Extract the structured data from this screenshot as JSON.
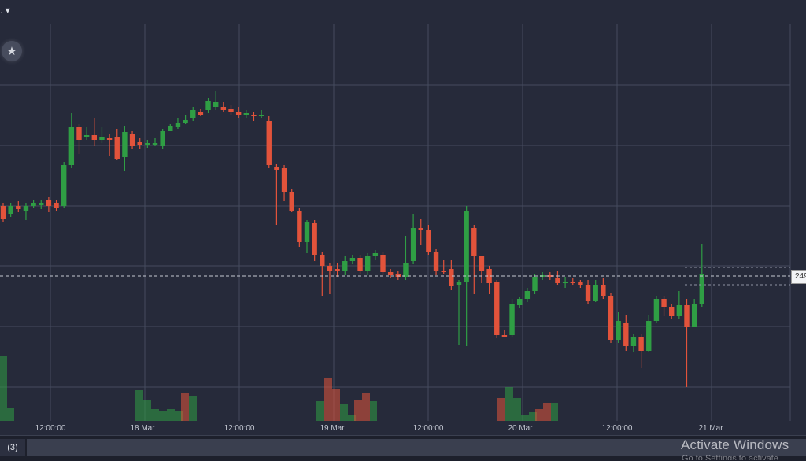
{
  "toolbar": {
    "asset_menu_label": "."
  },
  "price_axis": {
    "current_price_label": "249"
  },
  "bottom_panel": {
    "tab_count_label": "(3)"
  },
  "watermark": {
    "title": "Activate Windows",
    "subtitle": "Go to Settings to activate Windows."
  },
  "colors": {
    "background": "#262a3a",
    "grid": "#454b5e",
    "up": "#2f9e44",
    "down": "#e2533b"
  },
  "chart_data": {
    "type": "candlestick",
    "x_tick_labels": [
      "12:00:00",
      "18 Mar",
      "12:00:00",
      "19 Mar",
      "12:00:00",
      "20 Mar",
      "12:00:00",
      "21 Mar"
    ],
    "grid": true,
    "current_price_line": true,
    "candles_relative": [
      [
        262,
        278,
        258,
        282
      ],
      [
        272,
        262,
        258,
        276
      ],
      [
        262,
        266,
        256,
        270
      ],
      [
        268,
        262,
        258,
        280
      ],
      [
        262,
        258,
        254,
        264
      ],
      [
        260,
        258,
        254,
        266
      ],
      [
        254,
        262,
        250,
        270
      ],
      [
        258,
        265,
        254,
        268
      ],
      [
        262,
        210,
        206,
        264
      ],
      [
        210,
        162,
        144,
        214
      ],
      [
        162,
        178,
        158,
        196
      ],
      [
        174,
        172,
        162,
        178
      ],
      [
        172,
        178,
        150,
        186
      ],
      [
        178,
        174,
        162,
        182
      ],
      [
        176,
        176,
        170,
        198
      ],
      [
        174,
        202,
        164,
        204
      ],
      [
        200,
        168,
        160,
        218
      ],
      [
        170,
        186,
        166,
        190
      ],
      [
        180,
        184,
        176,
        190
      ],
      [
        184,
        182,
        178,
        188
      ],
      [
        184,
        182,
        176,
        186
      ],
      [
        186,
        166,
        164,
        190
      ],
      [
        166,
        160,
        158,
        166
      ],
      [
        162,
        156,
        150,
        164
      ],
      [
        156,
        152,
        146,
        158
      ],
      [
        150,
        140,
        136,
        154
      ],
      [
        142,
        146,
        138,
        148
      ],
      [
        140,
        128,
        124,
        144
      ],
      [
        136,
        130,
        116,
        140
      ],
      [
        136,
        140,
        130,
        142
      ],
      [
        138,
        142,
        134,
        146
      ],
      [
        142,
        146,
        136,
        150
      ],
      [
        146,
        144,
        140,
        150
      ],
      [
        146,
        148,
        142,
        154
      ],
      [
        148,
        146,
        140,
        150
      ],
      [
        154,
        210,
        148,
        214
      ],
      [
        212,
        216,
        208,
        286
      ],
      [
        214,
        244,
        210,
        256
      ],
      [
        244,
        268,
        240,
        270
      ],
      [
        268,
        308,
        264,
        314
      ],
      [
        308,
        282,
        280,
        322
      ],
      [
        284,
        324,
        280,
        332
      ],
      [
        324,
        338,
        320,
        376
      ],
      [
        338,
        344,
        334,
        374
      ],
      [
        342,
        344,
        334,
        352
      ],
      [
        344,
        332,
        326,
        350
      ],
      [
        332,
        328,
        324,
        336
      ],
      [
        328,
        344,
        324,
        348
      ],
      [
        344,
        326,
        322,
        350
      ],
      [
        326,
        322,
        318,
        330
      ],
      [
        324,
        346,
        320,
        350
      ],
      [
        346,
        350,
        342,
        354
      ],
      [
        348,
        352,
        344,
        356
      ],
      [
        352,
        334,
        300,
        356
      ],
      [
        332,
        290,
        272,
        336
      ],
      [
        290,
        292,
        278,
        312
      ],
      [
        292,
        320,
        286,
        324
      ],
      [
        320,
        344,
        316,
        350
      ],
      [
        344,
        344,
        330,
        348
      ],
      [
        342,
        364,
        330,
        368
      ],
      [
        362,
        358,
        356,
        438
      ],
      [
        358,
        268,
        262,
        440
      ],
      [
        290,
        326,
        286,
        374
      ],
      [
        326,
        344,
        326,
        360
      ],
      [
        342,
        360,
        338,
        374
      ],
      [
        358,
        426,
        356,
        430
      ],
      [
        426,
        426,
        420,
        428
      ],
      [
        426,
        386,
        380,
        428
      ],
      [
        388,
        380,
        378,
        392
      ],
      [
        380,
        370,
        366,
        384
      ],
      [
        370,
        352,
        348,
        374
      ],
      [
        352,
        350,
        346,
        356
      ],
      [
        350,
        352,
        346,
        356
      ],
      [
        354,
        360,
        344,
        362
      ],
      [
        360,
        358,
        352,
        366
      ],
      [
        358,
        360,
        354,
        362
      ],
      [
        358,
        362,
        356,
        366
      ],
      [
        362,
        382,
        356,
        386
      ],
      [
        382,
        362,
        356,
        384
      ],
      [
        362,
        376,
        354,
        380
      ],
      [
        376,
        432,
        372,
        436
      ],
      [
        432,
        408,
        396,
        436
      ],
      [
        410,
        440,
        400,
        446
      ],
      [
        440,
        428,
        424,
        448
      ],
      [
        428,
        446,
        424,
        468
      ],
      [
        446,
        408,
        400,
        448
      ],
      [
        408,
        380,
        376,
        410
      ],
      [
        380,
        390,
        376,
        402
      ],
      [
        390,
        402,
        386,
        406
      ],
      [
        402,
        388,
        370,
        406
      ],
      [
        388,
        416,
        380,
        492
      ],
      [
        416,
        386,
        380,
        416
      ],
      [
        386,
        348,
        310,
        390
      ]
    ],
    "volume_relative": [
      [
        452,
        "up"
      ],
      [
        0,
        "none"
      ],
      [
        0,
        "none"
      ],
      [
        0,
        "none"
      ],
      [
        0,
        "none"
      ],
      [
        0,
        "none"
      ],
      [
        0,
        "none"
      ],
      [
        0,
        "none"
      ],
      [
        0,
        "none"
      ],
      [
        0,
        "none"
      ],
      [
        0,
        "none"
      ],
      [
        0,
        "none"
      ],
      [
        0,
        "none"
      ],
      [
        0,
        "none"
      ],
      [
        0,
        "none"
      ],
      [
        0,
        "none"
      ],
      [
        0,
        "none"
      ],
      [
        0,
        "none"
      ],
      [
        0,
        "none"
      ],
      [
        0,
        "none"
      ],
      [
        0,
        "none"
      ],
      [
        0,
        "none"
      ],
      [
        0,
        "none"
      ],
      [
        0,
        "none"
      ],
      [
        0,
        "none"
      ],
      [
        0,
        "none"
      ],
      [
        0,
        "none"
      ],
      [
        0,
        "none"
      ],
      [
        0,
        "none"
      ],
      [
        0,
        "none"
      ],
      [
        0,
        "none"
      ],
      [
        0,
        "none"
      ]
    ]
  }
}
